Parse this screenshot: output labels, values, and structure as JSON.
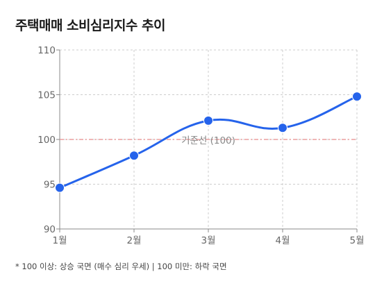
{
  "title": "주택매매 소비심리지수 추이",
  "footnote": "* 100 이상: 상승 국면 (매수 심리 우세) | 100 미만: 하락 국면",
  "chart_data": {
    "type": "line",
    "categories": [
      "1월",
      "2월",
      "3월",
      "4월",
      "5월"
    ],
    "values": [
      94.6,
      98.2,
      102.1,
      101.3,
      104.8
    ],
    "ylim": [
      90,
      110
    ],
    "yticks": [
      90,
      95,
      100,
      105,
      110
    ],
    "grid": true,
    "reference_line": {
      "value": 100,
      "label": "기준선 (100)"
    },
    "colors": {
      "line": "#2563eb",
      "reference": "#e88a8a",
      "grid": "#cccccc",
      "axis": "#888888"
    }
  }
}
